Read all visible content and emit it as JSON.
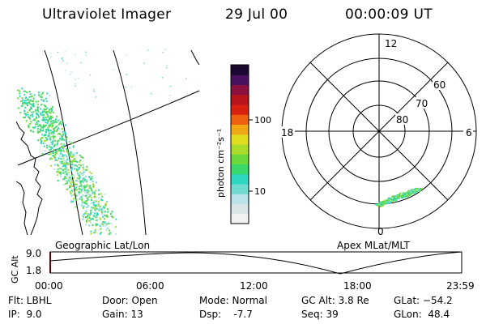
{
  "header": {
    "title": "Ultraviolet Imager",
    "date": "29 Jul 00",
    "time": "00:00:09 UT"
  },
  "colorbar": {
    "unit_label": "photon cm⁻²s⁻¹",
    "tick_100": "100",
    "tick_10": "10",
    "colors": [
      "#f2f2f2",
      "#d8e4e6",
      "#b8e3e8",
      "#6fdccf",
      "#2fd6c0",
      "#38d86a",
      "#6ad83a",
      "#a8dc28",
      "#e0dc20",
      "#f0a814",
      "#ec6010",
      "#d82010",
      "#b8141e",
      "#8a1040",
      "#4a1060",
      "#1a0830"
    ]
  },
  "geo_panel": {
    "label": "Geographic Lat/Lon"
  },
  "polar_panel": {
    "label": "Apex MLat/MLT",
    "mlt_12": "12",
    "mlt_18": "18",
    "mlt_6": "6",
    "mlt_0": "0",
    "lat_60": "60",
    "lat_70": "70",
    "lat_80": "80"
  },
  "altitude_plot": {
    "ylabel": "GC Alt",
    "ymax": "9.0",
    "ymin": "1.8",
    "xticks": [
      "00:00",
      "06:00",
      "12:00",
      "18:00",
      "23:59"
    ]
  },
  "status": {
    "flt": "Flt: LBHL",
    "ip": "IP:  9.0",
    "door": "Door: Open",
    "gain": "Gain: 13",
    "mode": "Mode: Normal",
    "dsp": "Dsp:    -7.7",
    "gcalt": "GC Alt: 3.8 Re",
    "seq": "Seq: 39",
    "glat": "GLat: −54.2",
    "glon": "GLon:  48.4"
  }
}
